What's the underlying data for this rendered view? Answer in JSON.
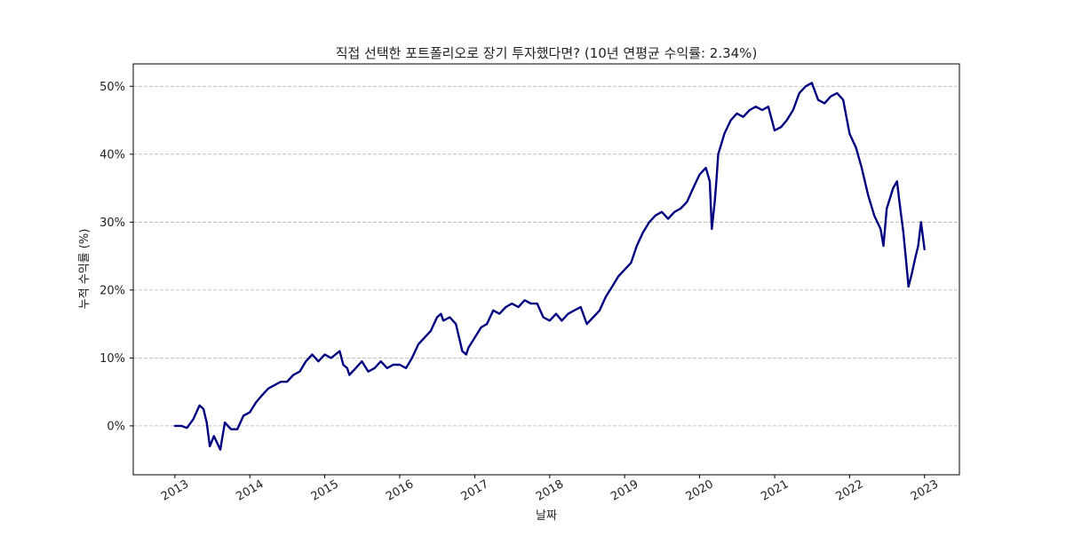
{
  "chart_data": {
    "type": "line",
    "title": "직접 선택한 포트폴리오로 장기 투자했다면? (10년 연평균 수익률: 2.34%)",
    "xlabel": "날짜",
    "ylabel": "누적 수익률 (%)",
    "x_ticks": [
      "2013",
      "2014",
      "2015",
      "2016",
      "2017",
      "2018",
      "2019",
      "2020",
      "2021",
      "2022",
      "2023"
    ],
    "y_ticks": [
      {
        "value": 0,
        "label": "0%"
      },
      {
        "value": 10,
        "label": "10%"
      },
      {
        "value": 20,
        "label": "20%"
      },
      {
        "value": 30,
        "label": "30%"
      },
      {
        "value": 40,
        "label": "40%"
      },
      {
        "value": 50,
        "label": "50%"
      }
    ],
    "xlim": [
      "2012-06-12",
      "2023-06-20"
    ],
    "ylim": [
      -7.2,
      53.3
    ],
    "grid": "horizontal dashed",
    "line_color": "#000080",
    "grid_color": "#b0b0b0",
    "series": [
      {
        "x": [
          "2013-01-01",
          "2013-02-01",
          "2013-03-01",
          "2013-04-01",
          "2013-05-01",
          "2013-05-20",
          "2013-06-05",
          "2013-06-20",
          "2013-07-10",
          "2013-08-10",
          "2013-09-01",
          "2013-10-01",
          "2013-11-01",
          "2013-12-01",
          "2014-01-01",
          "2014-02-01",
          "2014-03-01",
          "2014-04-01",
          "2014-05-01",
          "2014-06-01",
          "2014-07-01",
          "2014-08-01",
          "2014-09-01",
          "2014-10-01",
          "2014-11-01",
          "2014-12-01",
          "2015-01-01",
          "2015-02-01",
          "2015-03-15",
          "2015-04-01",
          "2015-04-20",
          "2015-05-01",
          "2015-06-01",
          "2015-07-01",
          "2015-08-01",
          "2015-09-01",
          "2015-10-01",
          "2015-11-01",
          "2015-12-01",
          "2016-01-01",
          "2016-02-01",
          "2016-03-01",
          "2016-04-01",
          "2016-05-01",
          "2016-06-01",
          "2016-07-01",
          "2016-07-20",
          "2016-08-01",
          "2016-09-01",
          "2016-10-01",
          "2016-11-01",
          "2016-11-20",
          "2016-12-01",
          "2017-01-01",
          "2017-02-01",
          "2017-03-01",
          "2017-04-01",
          "2017-05-01",
          "2017-06-01",
          "2017-07-01",
          "2017-08-01",
          "2017-09-01",
          "2017-10-01",
          "2017-11-01",
          "2017-12-01",
          "2018-01-01",
          "2018-02-01",
          "2018-03-01",
          "2018-04-01",
          "2018-05-01",
          "2018-06-01",
          "2018-07-01",
          "2018-08-01",
          "2018-09-01",
          "2018-10-01",
          "2018-11-01",
          "2018-12-01",
          "2019-01-01",
          "2019-02-01",
          "2019-03-01",
          "2019-04-01",
          "2019-05-01",
          "2019-06-01",
          "2019-07-01",
          "2019-08-01",
          "2019-09-01",
          "2019-10-01",
          "2019-11-01",
          "2019-12-01",
          "2020-01-01",
          "2020-02-01",
          "2020-02-20",
          "2020-03-01",
          "2020-03-15",
          "2020-03-23",
          "2020-04-01",
          "2020-05-01",
          "2020-06-01",
          "2020-07-01",
          "2020-08-01",
          "2020-09-01",
          "2020-10-01",
          "2020-11-01",
          "2020-12-01",
          "2021-01-01",
          "2021-02-01",
          "2021-03-01",
          "2021-04-01",
          "2021-05-01",
          "2021-06-01",
          "2021-07-01",
          "2021-08-01",
          "2021-09-01",
          "2021-10-01",
          "2021-11-01",
          "2021-12-01",
          "2022-01-01",
          "2022-02-01",
          "2022-03-01",
          "2022-04-01",
          "2022-05-01",
          "2022-06-01",
          "2022-06-15",
          "2022-07-01",
          "2022-08-01",
          "2022-08-20",
          "2022-09-01",
          "2022-09-20",
          "2022-10-01",
          "2022-10-15",
          "2022-11-01",
          "2022-11-15",
          "2022-12-01",
          "2022-12-15",
          "2023-01-01"
        ],
        "y": [
          0,
          0,
          -0.3,
          1.0,
          3.0,
          2.5,
          0.5,
          -3.0,
          -1.5,
          -3.5,
          0.5,
          -0.5,
          -0.5,
          1.5,
          2.0,
          3.5,
          4.5,
          5.5,
          6.0,
          6.5,
          6.5,
          7.5,
          8.0,
          9.5,
          10.5,
          9.5,
          10.5,
          10.0,
          11.0,
          9.0,
          8.5,
          7.5,
          8.5,
          9.5,
          8.0,
          8.5,
          9.5,
          8.5,
          9.0,
          9.0,
          8.5,
          10.0,
          12.0,
          13.0,
          14.0,
          16.0,
          16.5,
          15.5,
          16.0,
          15.0,
          11.0,
          10.5,
          11.5,
          13.0,
          14.5,
          15.0,
          17.0,
          16.5,
          17.5,
          18.0,
          17.5,
          18.5,
          18.0,
          18.0,
          16.0,
          15.5,
          16.5,
          15.5,
          16.5,
          17.0,
          17.5,
          15.0,
          16.0,
          17.0,
          19.0,
          20.5,
          22.0,
          23.0,
          24.0,
          26.5,
          28.5,
          30.0,
          31.0,
          31.5,
          30.5,
          31.5,
          32.0,
          33.0,
          35.0,
          37.0,
          38.0,
          36.0,
          29.0,
          33.0,
          36.0,
          40.0,
          43.0,
          45.0,
          46.0,
          45.5,
          46.5,
          47.0,
          46.5,
          47.0,
          43.5,
          44.0,
          45.0,
          46.5,
          49.0,
          50.0,
          50.5,
          48.0,
          47.5,
          48.5,
          49.0,
          48.0,
          43.0,
          41.0,
          38.0,
          34.0,
          31.0,
          29.0,
          26.5,
          32.0,
          35.0,
          36.0,
          33.0,
          28.5,
          25.0,
          20.5,
          22.5,
          24.5,
          26.5,
          30.0,
          26.0
        ]
      }
    ]
  }
}
